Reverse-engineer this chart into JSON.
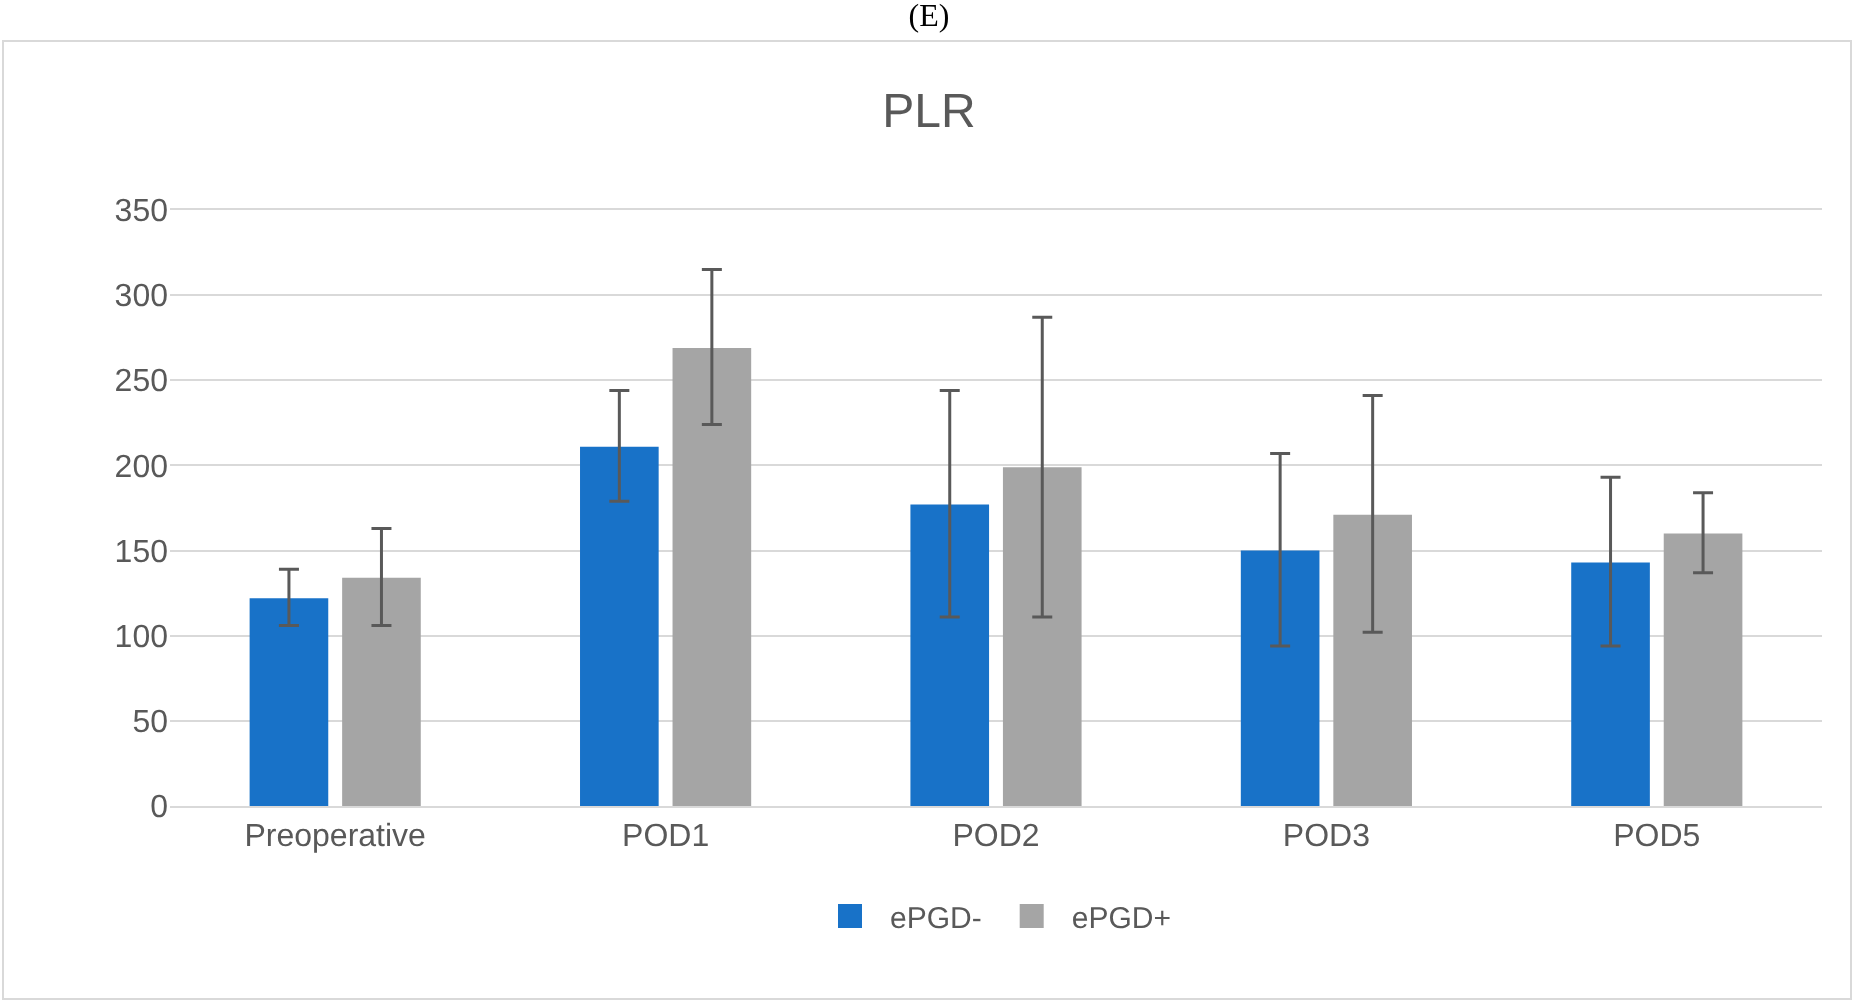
{
  "chart_data": {
    "type": "bar",
    "title": "PLR",
    "annotations": [
      "(E)"
    ],
    "categories": [
      "Preoperative",
      "POD1",
      "POD2",
      "POD3",
      "POD5"
    ],
    "series": [
      {
        "name": "ePGD-",
        "color": "#1872c8",
        "values": [
          122,
          211,
          177,
          150,
          143
        ],
        "errors": [
          [
            106,
            139
          ],
          [
            179,
            244
          ],
          [
            111,
            244
          ],
          [
            94,
            207
          ],
          [
            94,
            193
          ]
        ]
      },
      {
        "name": "ePGD+",
        "color": "#a5a5a5",
        "values": [
          134,
          269,
          199,
          171,
          160
        ],
        "errors": [
          [
            106,
            163
          ],
          [
            224,
            315
          ],
          [
            111,
            287
          ],
          [
            102,
            241
          ],
          [
            137,
            184
          ]
        ]
      }
    ],
    "ylim": [
      0,
      350
    ],
    "yticks": [
      0,
      50,
      100,
      150,
      200,
      250,
      300,
      350
    ],
    "grid": "y",
    "legend": "bottom"
  }
}
